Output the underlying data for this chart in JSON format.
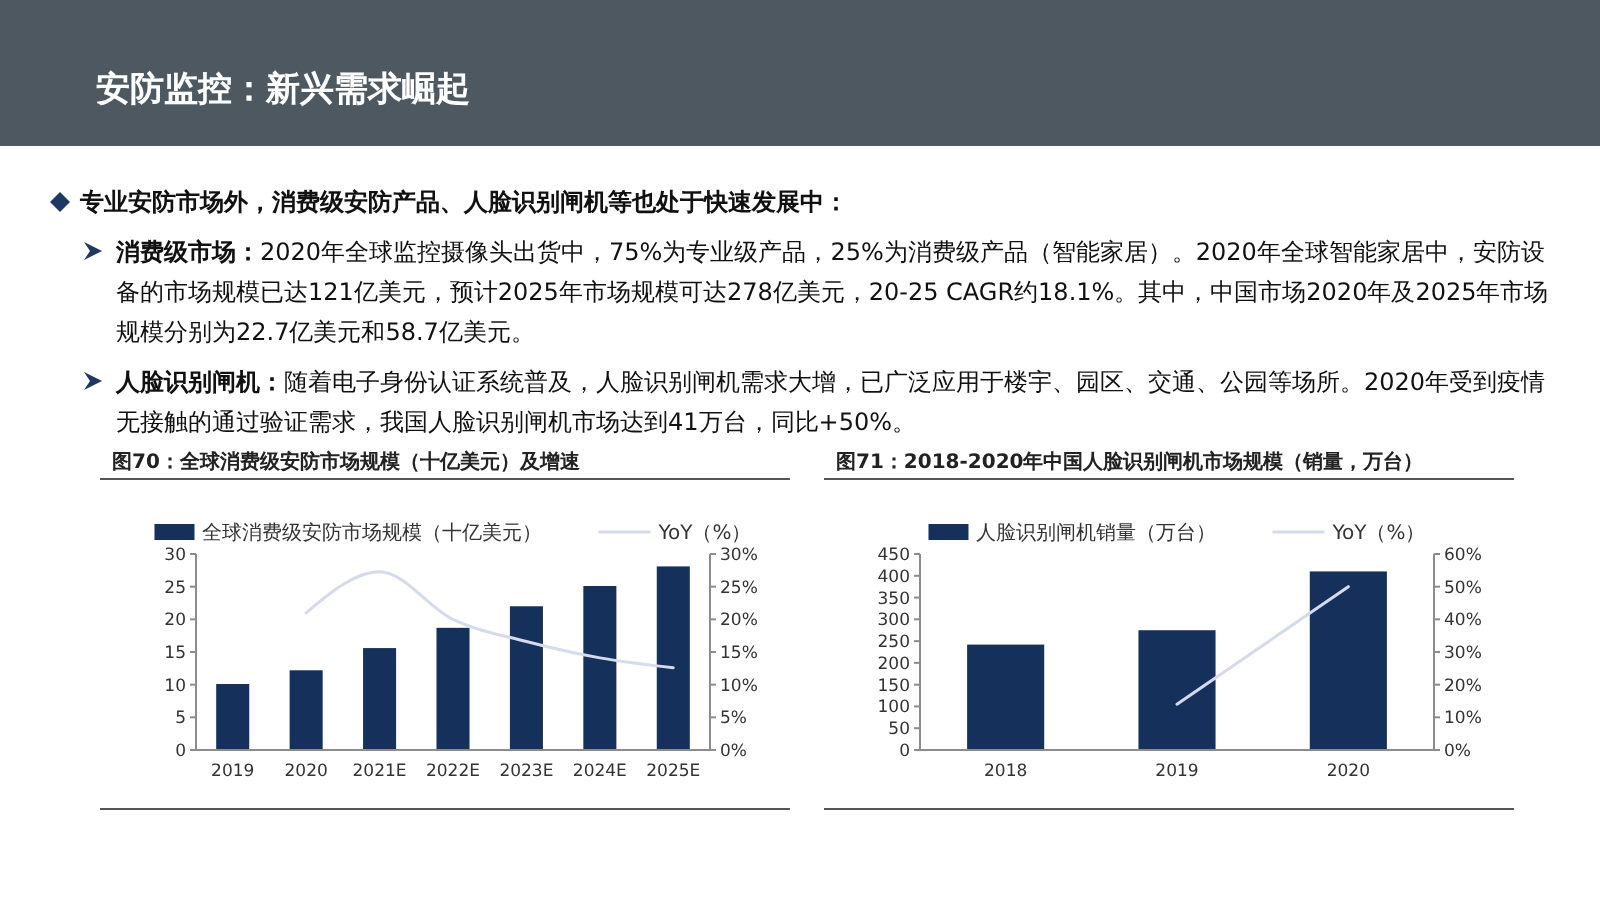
{
  "chart_data": [
    {
      "type": "other",
      "title": "安防监控：新兴需求崛起",
      "annotations": [
        "专业安防市场外，消费级安防产品、人脸识别闸机等也处于快速发展中：",
        "消费级市场：2020年全球监控摄像头出货中，75%为专业级产品，25%为消费级产品（智能家居）。2020年全球智能家居中，安防设备的市场规模已达121亿美元，预计2025年市场规模可达278亿美元，20-25 CAGR约18.1%。其中，中国市场2020年及2025年市场规模分别为22.7亿美元和58.7亿美元。",
        "人脸识别闸机：随着电子身份认证系统普及，人脸识别闸机需求大增，已广泛应用于楼宇、园区、交通、公园等场所。2020年受到疫情无接触的通过验证需求，我国人脸识别闸机市场达到41万台，同比+50%。"
      ]
    },
    {
      "type": "bar",
      "title": "图70：全球消费级安防市场规模（十亿美元）及增速",
      "categories": [
        "2019",
        "2020",
        "2021E",
        "2022E",
        "2023E",
        "2024E",
        "2025E"
      ],
      "series": [
        {
          "name": "全球消费级安防市场规模（十亿美元）",
          "color": "#15315b",
          "values": [
            10.1,
            12.2,
            15.6,
            18.7,
            22.0,
            25.1,
            28.1
          ]
        },
        {
          "name": "YoY（%）",
          "type": "line",
          "axis": "y2",
          "color": "#d5daee",
          "values": [
            null,
            21,
            27.3,
            20,
            16.6,
            14.1,
            12.6
          ]
        }
      ],
      "ylim": [
        0,
        30
      ],
      "yticks": [
        0,
        5,
        10,
        15,
        20,
        25,
        30
      ],
      "y2lim": [
        0,
        30
      ],
      "y2ticks": [
        {
          "value": 0,
          "label": "0%"
        },
        {
          "value": 5,
          "label": "5%"
        },
        {
          "value": 10,
          "label": "10%"
        },
        {
          "value": 15,
          "label": "15%"
        },
        {
          "value": 20,
          "label": "20%"
        },
        {
          "value": 25,
          "label": "25%"
        },
        {
          "value": 30,
          "label": "30%"
        }
      ],
      "legend": "top"
    },
    {
      "type": "bar",
      "title": "图71：2018-2020年中国人脸识别闸机市场规模（销量，万台）",
      "categories": [
        "2018",
        "2019",
        "2020"
      ],
      "series": [
        {
          "name": "人脸识别闸机销量（万台）",
          "color": "#15315b",
          "values": [
            242,
            275,
            410
          ]
        },
        {
          "name": "YoY（%）",
          "type": "line",
          "axis": "y2",
          "color": "#d5daee",
          "values": [
            null,
            14,
            50
          ]
        }
      ],
      "ylim": [
        0,
        450
      ],
      "yticks": [
        0,
        50,
        100,
        150,
        200,
        250,
        300,
        350,
        400,
        450
      ],
      "y2lim": [
        0,
        60
      ],
      "y2ticks": [
        {
          "value": 0,
          "label": "0%"
        },
        {
          "value": 10,
          "label": "10%"
        },
        {
          "value": 20,
          "label": "20%"
        },
        {
          "value": 30,
          "label": "30%"
        },
        {
          "value": 40,
          "label": "40%"
        },
        {
          "value": 50,
          "label": "50%"
        },
        {
          "value": 60,
          "label": "60%"
        }
      ],
      "legend": "top"
    }
  ]
}
